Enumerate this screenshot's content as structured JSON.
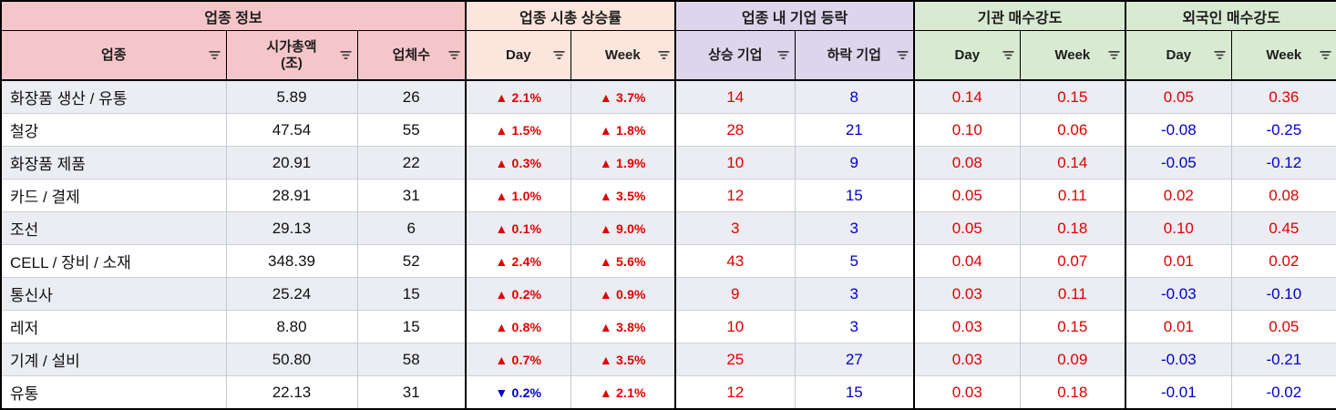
{
  "colors": {
    "group_sector_info_bg": "#f5c6c9",
    "group_rise_rate_bg": "#fbe5dc",
    "group_firm_updown_bg": "#ddd5ec",
    "group_strength_bg": "#d9ead3",
    "positive_text": "#e00000",
    "negative_text": "#0000cd",
    "row_alt_bg": "#ebedf3",
    "grid_line": "#000000"
  },
  "groups": [
    {
      "label": "업종 정보",
      "bg": "#f5c6c9"
    },
    {
      "label": "업종 시총 상승률",
      "bg": "#fbe5dc"
    },
    {
      "label": "업종 내 기업 등락",
      "bg": "#ddd5ec"
    },
    {
      "label": "기관 매수강도",
      "bg": "#d9ead3"
    },
    {
      "label": "외국인 매수강도",
      "bg": "#d9ead3"
    }
  ],
  "columns": [
    {
      "key": "sector",
      "name": "sector",
      "label": "업종",
      "bg": "#f5c6c9",
      "type": "text"
    },
    {
      "key": "mcap",
      "name": "market-cap",
      "label": "시가총액\n(조)",
      "bg": "#f5c6c9",
      "type": "num"
    },
    {
      "key": "firms",
      "name": "firm-count",
      "label": "업체수",
      "bg": "#f5c6c9",
      "type": "num"
    },
    {
      "key": "day",
      "name": "day-change",
      "label": "Day",
      "bg": "#fbe5dc",
      "type": "pct"
    },
    {
      "key": "week",
      "name": "week-change",
      "label": "Week",
      "bg": "#fbe5dc",
      "type": "pct"
    },
    {
      "key": "up",
      "name": "rising-firms",
      "label": "상승 기업",
      "bg": "#ddd5ec",
      "type": "pos"
    },
    {
      "key": "down",
      "name": "falling-firms",
      "label": "하락 기업",
      "bg": "#ddd5ec",
      "type": "neg"
    },
    {
      "key": "inst_day",
      "name": "inst-day",
      "label": "Day",
      "bg": "#d9ead3",
      "type": "sign"
    },
    {
      "key": "inst_week",
      "name": "inst-week",
      "label": "Week",
      "bg": "#d9ead3",
      "type": "sign"
    },
    {
      "key": "frgn_day",
      "name": "foreign-day",
      "label": "Day",
      "bg": "#d9ead3",
      "type": "sign"
    },
    {
      "key": "frgn_week",
      "name": "foreign-week",
      "label": "Week",
      "bg": "#d9ead3",
      "type": "sign"
    }
  ],
  "rows": [
    {
      "sector": "화장품 생산 / 유통",
      "mcap": "5.89",
      "firms": "26",
      "day": "▲ 2.1%",
      "week": "▲ 3.7%",
      "up": "14",
      "down": "8",
      "inst_day": "0.14",
      "inst_week": "0.15",
      "frgn_day": "0.05",
      "frgn_week": "0.36"
    },
    {
      "sector": "철강",
      "mcap": "47.54",
      "firms": "55",
      "day": "▲ 1.5%",
      "week": "▲ 1.8%",
      "up": "28",
      "down": "21",
      "inst_day": "0.10",
      "inst_week": "0.06",
      "frgn_day": "-0.08",
      "frgn_week": "-0.25"
    },
    {
      "sector": "화장품 제품",
      "mcap": "20.91",
      "firms": "22",
      "day": "▲ 0.3%",
      "week": "▲ 1.9%",
      "up": "10",
      "down": "9",
      "inst_day": "0.08",
      "inst_week": "0.14",
      "frgn_day": "-0.05",
      "frgn_week": "-0.12"
    },
    {
      "sector": "카드 / 결제",
      "mcap": "28.91",
      "firms": "31",
      "day": "▲ 1.0%",
      "week": "▲ 3.5%",
      "up": "12",
      "down": "15",
      "inst_day": "0.05",
      "inst_week": "0.11",
      "frgn_day": "0.02",
      "frgn_week": "0.08"
    },
    {
      "sector": "조선",
      "mcap": "29.13",
      "firms": "6",
      "day": "▲ 0.1%",
      "week": "▲ 9.0%",
      "up": "3",
      "down": "3",
      "inst_day": "0.05",
      "inst_week": "0.18",
      "frgn_day": "0.10",
      "frgn_week": "0.45"
    },
    {
      "sector": "CELL / 장비 / 소재",
      "mcap": "348.39",
      "firms": "52",
      "day": "▲ 2.4%",
      "week": "▲ 5.6%",
      "up": "43",
      "down": "5",
      "inst_day": "0.04",
      "inst_week": "0.07",
      "frgn_day": "0.01",
      "frgn_week": "0.02"
    },
    {
      "sector": "통신사",
      "mcap": "25.24",
      "firms": "15",
      "day": "▲ 0.2%",
      "week": "▲ 0.9%",
      "up": "9",
      "down": "3",
      "inst_day": "0.03",
      "inst_week": "0.11",
      "frgn_day": "-0.03",
      "frgn_week": "-0.10"
    },
    {
      "sector": "레저",
      "mcap": "8.80",
      "firms": "15",
      "day": "▲ 0.8%",
      "week": "▲ 3.8%",
      "up": "10",
      "down": "3",
      "inst_day": "0.03",
      "inst_week": "0.15",
      "frgn_day": "0.01",
      "frgn_week": "0.05"
    },
    {
      "sector": "기계 / 설비",
      "mcap": "50.80",
      "firms": "58",
      "day": "▲ 0.7%",
      "week": "▲ 3.5%",
      "up": "25",
      "down": "27",
      "inst_day": "0.03",
      "inst_week": "0.09",
      "frgn_day": "-0.03",
      "frgn_week": "-0.21"
    },
    {
      "sector": "유통",
      "mcap": "22.13",
      "firms": "31",
      "day": "▼ 0.2%",
      "week": "▲ 2.1%",
      "up": "12",
      "down": "15",
      "inst_day": "0.03",
      "inst_week": "0.18",
      "frgn_day": "-0.01",
      "frgn_week": "-0.02"
    }
  ]
}
